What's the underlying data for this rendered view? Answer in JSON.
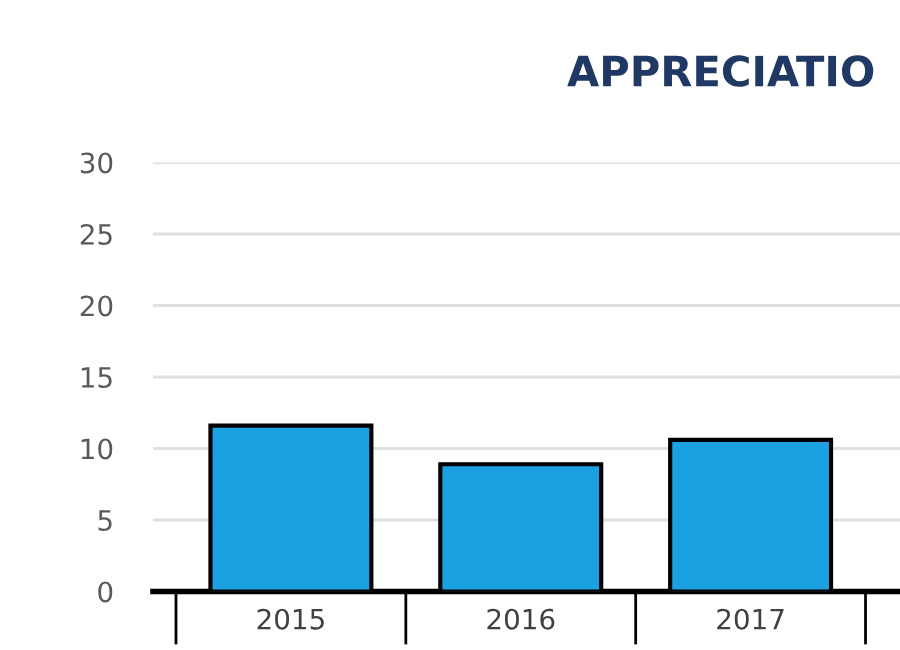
{
  "chart_data": {
    "type": "bar",
    "title": "APPRECIATIO",
    "categories": [
      "2015",
      "2016",
      "2017"
    ],
    "values": [
      11.6,
      8.9,
      10.6
    ],
    "color": "#1ba1e2",
    "ylim": [
      0,
      30
    ],
    "yticks": [
      0,
      5,
      10,
      15,
      20,
      25,
      30
    ],
    "grid": "y"
  }
}
